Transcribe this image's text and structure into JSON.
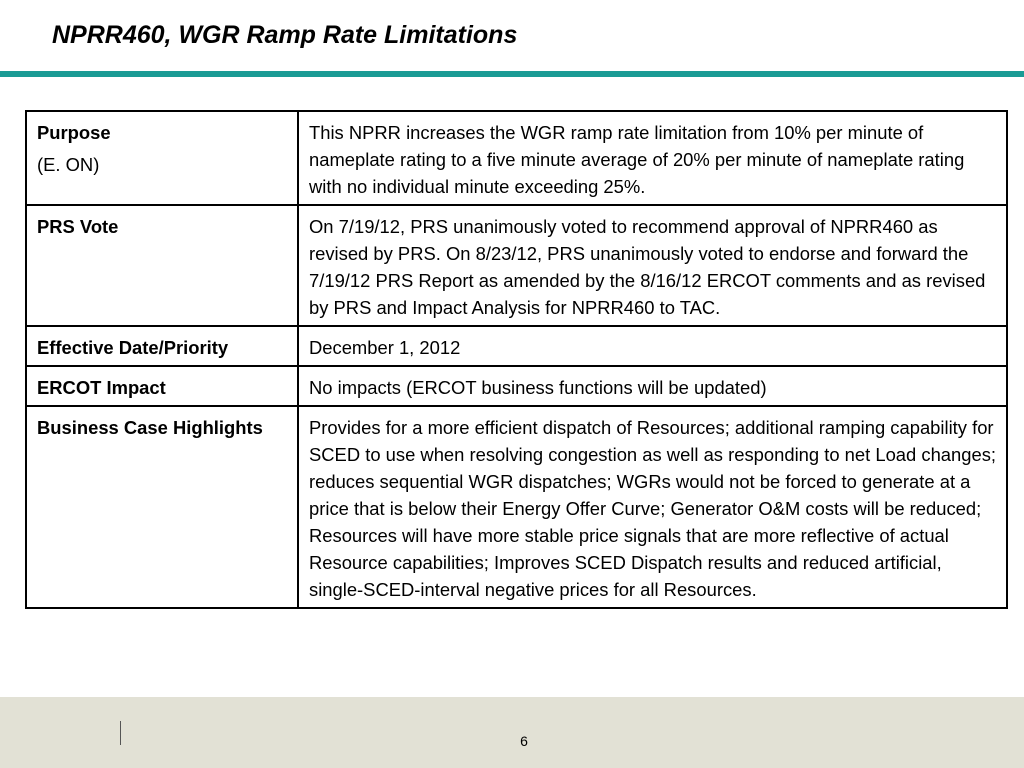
{
  "slide": {
    "title": "NPRR460, WGR Ramp Rate Limitations",
    "accent_color": "#1a9b95",
    "footer_color": "#e2e1d5",
    "page_number": "6"
  },
  "table": {
    "rows": [
      {
        "label": "Purpose",
        "sublabel": "(E. ON)",
        "value": "This NPRR increases the WGR ramp rate limitation from 10% per minute of nameplate rating to a five minute average of 20% per minute of nameplate rating with no individual minute exceeding 25%."
      },
      {
        "label": "PRS Vote",
        "value": "On 7/19/12, PRS unanimously voted to recommend approval of NPRR460 as revised by PRS.  On 8/23/12, PRS unanimously voted to endorse and forward the 7/19/12 PRS Report as amended by the 8/16/12 ERCOT comments and as revised by PRS and Impact Analysis for NPRR460 to TAC."
      },
      {
        "label": "Effective Date/Priority",
        "value": "December 1, 2012"
      },
      {
        "label": "ERCOT Impact",
        "value": "No impacts (ERCOT business functions will be updated)"
      },
      {
        "label": "Business Case Highlights",
        "value": "Provides for a more efficient dispatch of Resources; additional ramping capability for SCED to use when resolving congestion as well as responding to net Load changes; reduces sequential WGR dispatches; WGRs would not be forced to generate at a price that is below their Energy Offer Curve; Generator O&M costs will be reduced; Resources will have more stable price signals that are more reflective of actual Resource capabilities; Improves SCED Dispatch results and reduced artificial, single-SCED-interval negative prices for all Resources."
      }
    ]
  }
}
